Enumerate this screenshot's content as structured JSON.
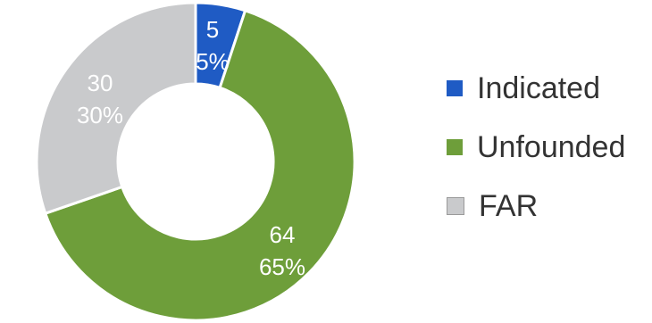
{
  "chart_data": {
    "type": "pie",
    "variant": "donut",
    "categories": [
      "Indicated",
      "Unfounded",
      "FAR"
    ],
    "values": [
      5,
      64,
      30
    ],
    "percent_labels": [
      "5%",
      "65%",
      "30%"
    ],
    "colors": [
      "#1f5bc4",
      "#6e9e3a",
      "#c9cacc"
    ],
    "legend_position": "right",
    "title": ""
  }
}
